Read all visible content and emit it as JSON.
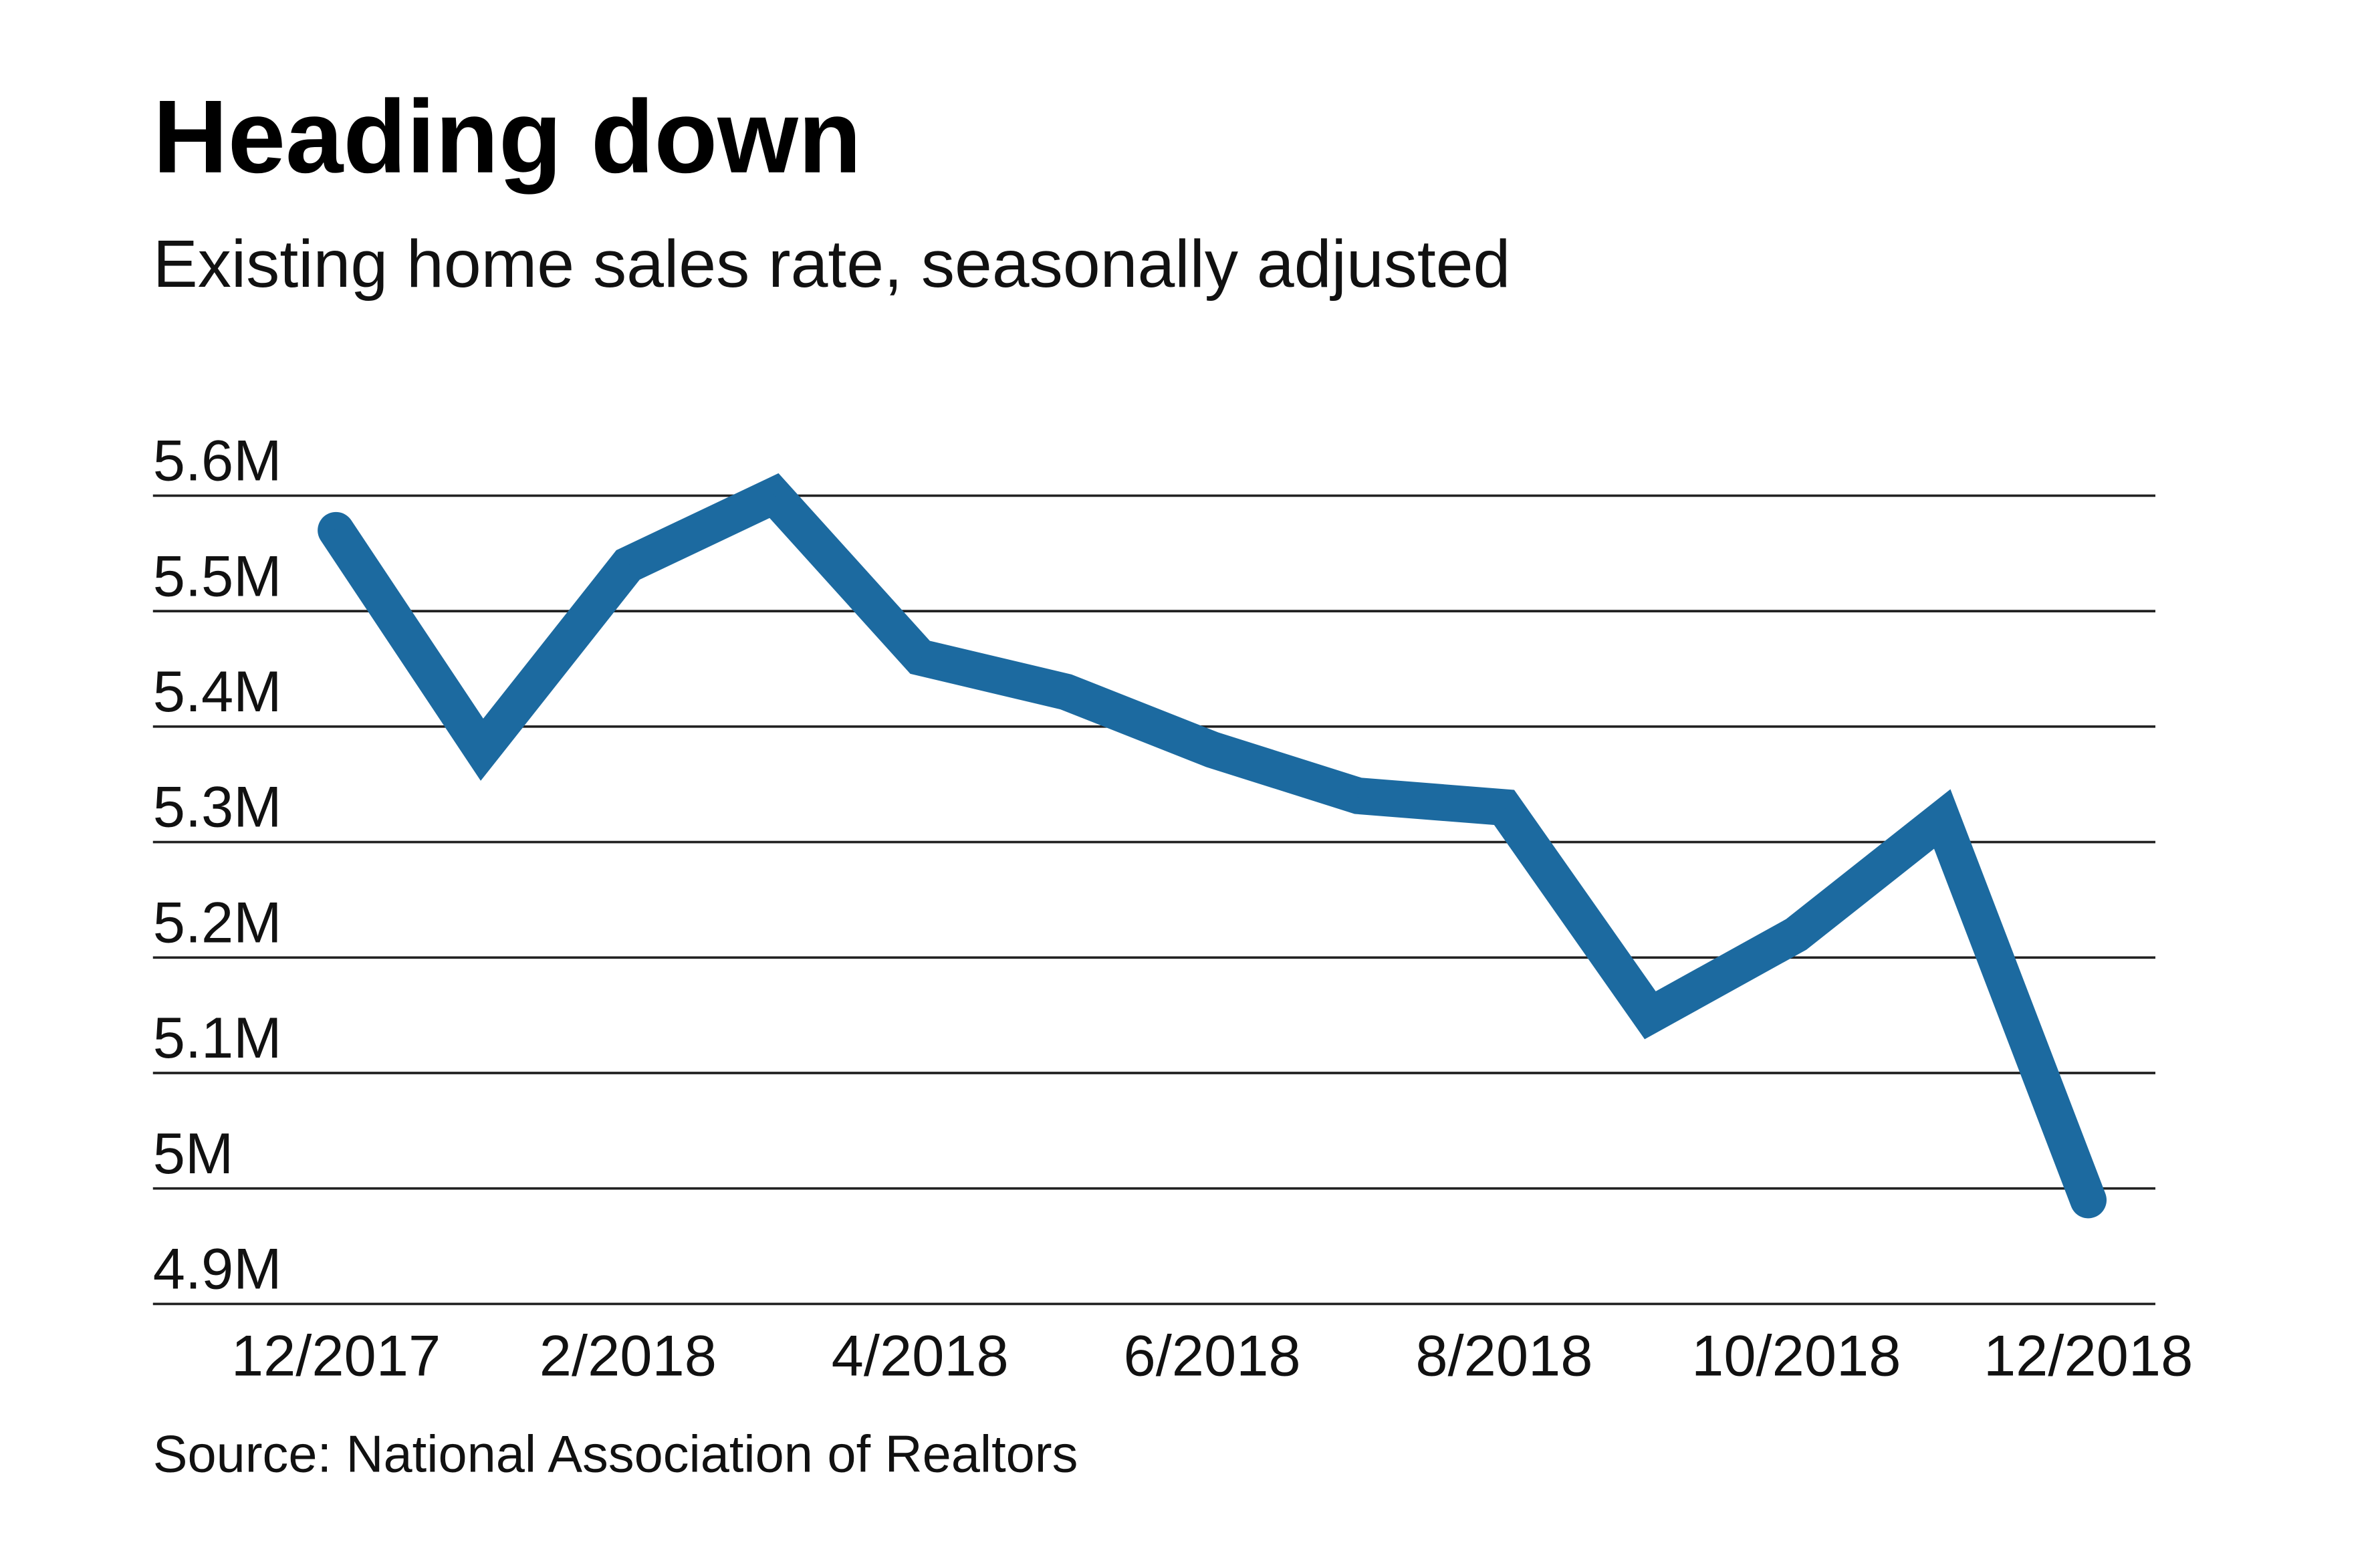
{
  "chart_data": {
    "type": "line",
    "title": "Heading down",
    "subtitle": "Existing home sales rate, seasonally adjusted",
    "source": "Source: National Association of Realtors",
    "x": [
      "12/2017",
      "1/2018",
      "2/2018",
      "3/2018",
      "4/2018",
      "5/2018",
      "6/2018",
      "7/2018",
      "8/2018",
      "9/2018",
      "10/2018",
      "11/2018",
      "12/2018"
    ],
    "x_tick_labels": [
      "12/2017",
      "2/2018",
      "4/2018",
      "6/2018",
      "8/2018",
      "10/2018",
      "12/2018"
    ],
    "series": [
      {
        "values": [
          5.57,
          5.38,
          5.54,
          5.6,
          5.46,
          5.43,
          5.38,
          5.34,
          5.33,
          5.15,
          5.22,
          5.32,
          4.99
        ]
      }
    ],
    "y_unit": "M",
    "ylim": [
      4.9,
      5.6
    ],
    "y_ticks": [
      5.6,
      5.5,
      5.4,
      5.3,
      5.2,
      5.1,
      5.0,
      4.9
    ],
    "y_tick_labels": [
      "5.6M",
      "5.5M",
      "5.4M",
      "5.3M",
      "5.2M",
      "5.1M",
      "5M",
      "4.9M"
    ],
    "grid": true,
    "line_color": "#1c6aa0"
  }
}
